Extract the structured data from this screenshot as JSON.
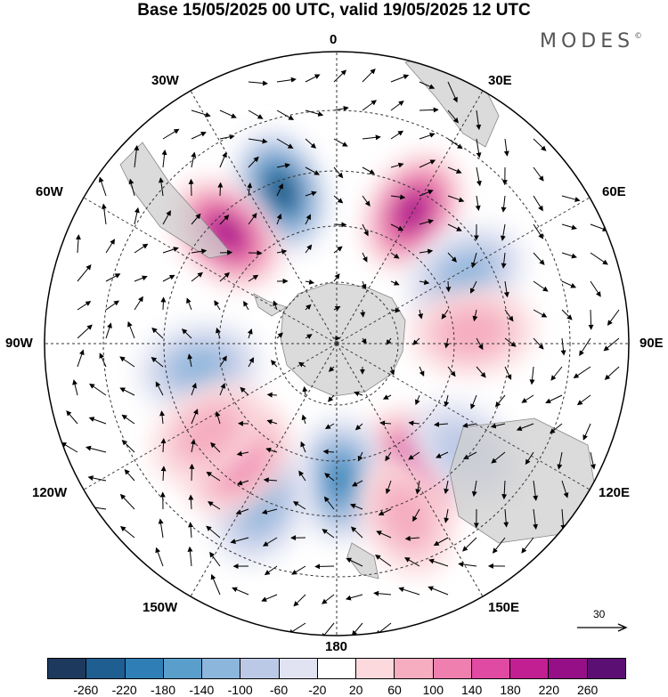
{
  "title": "Base 15/05/2025 00 UTC, valid 19/05/2025 12 UTC",
  "brand": "MODES",
  "brand_mark": "©",
  "longitude_labels": {
    "lon_0": "0",
    "lon_30e": "30E",
    "lon_60e": "60E",
    "lon_90e": "90E",
    "lon_120e": "120E",
    "lon_150e": "150E",
    "lon_180": "180",
    "lon_150w": "150W",
    "lon_120w": "120W",
    "lon_90w": "90W",
    "lon_60w": "60W",
    "lon_30w": "30W"
  },
  "reference_vector": "30",
  "colorbar": {
    "colors": [
      "#1d3a5e",
      "#1f5e91",
      "#2f7fb6",
      "#5a9fcc",
      "#8cb6dc",
      "#bcc9e6",
      "#e1e3f2",
      "#ffffff",
      "#fbd9dd",
      "#f5adbf",
      "#ee7fae",
      "#e04aa2",
      "#c21f93",
      "#960f86",
      "#5c0f73"
    ],
    "ticks": [
      "-260",
      "-220",
      "-180",
      "-140",
      "-100",
      "-60",
      "-20",
      "20",
      "60",
      "100",
      "140",
      "180",
      "220",
      "260"
    ]
  },
  "anomaly_centers": [
    {
      "lat": -40,
      "lon": -20,
      "value": -280
    },
    {
      "lat": -42,
      "lon": -45,
      "value": 240
    },
    {
      "lat": -43,
      "lon": 30,
      "value": 240
    },
    {
      "lat": -45,
      "lon": 62,
      "value": -130
    },
    {
      "lat": -48,
      "lon": 85,
      "value": 60
    },
    {
      "lat": -45,
      "lon": 148,
      "value": 200
    },
    {
      "lat": -48,
      "lon": 178,
      "value": -190
    },
    {
      "lat": -35,
      "lon": -155,
      "value": -130
    },
    {
      "lat": -43,
      "lon": -140,
      "value": 130
    },
    {
      "lat": -47,
      "lon": -100,
      "value": -130
    },
    {
      "lat": -42,
      "lon": -125,
      "value": 70
    },
    {
      "lat": -38,
      "lon": 130,
      "value": -90
    },
    {
      "lat": -33,
      "lon": 158,
      "value": 80
    }
  ]
}
